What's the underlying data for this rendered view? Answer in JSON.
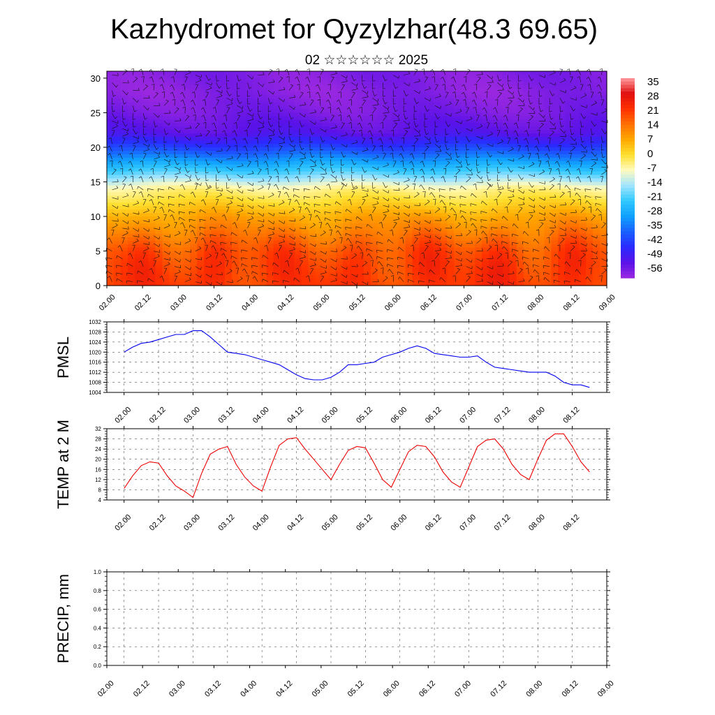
{
  "header": {
    "title": "Kazhydromet for Qyzylzhar(48.3 69.65)",
    "subtitle": "02 ☆☆☆☆☆☆ 2025"
  },
  "time_ticks": [
    "02.00",
    "02.12",
    "03.00",
    "03.12",
    "04.00",
    "04.12",
    "05.00",
    "05.12",
    "06.00",
    "06.12",
    "07.00",
    "07.12",
    "08.00",
    "08.12",
    "09.00"
  ],
  "chart_data": [
    {
      "type": "heatmap",
      "title": "",
      "y_range": [
        0,
        30
      ],
      "y_ticks": [
        0,
        5,
        10,
        15,
        20,
        25,
        30
      ],
      "colorbar": {
        "labels": [
          "35",
          "28",
          "21",
          "14",
          "7",
          "0",
          "-7",
          "-14",
          "-21",
          "-28",
          "-35",
          "-42",
          "-49",
          "-56"
        ],
        "range": [
          -60,
          38
        ],
        "colors": [
          "#9a28e0",
          "#5a12e8",
          "#2a2aff",
          "#1a60ff",
          "#10a0ff",
          "#30c8ff",
          "#a0e4ff",
          "#fffbc0",
          "#ffe030",
          "#ffa800",
          "#ff7000",
          "#ff3000",
          "#e01010",
          "#ff9ba0"
        ]
      },
      "temperature_bands": [
        {
          "height": 0,
          "value": 20
        },
        {
          "height": 5,
          "value": 16
        },
        {
          "height": 10,
          "value": 7
        },
        {
          "height": 14,
          "value": -5
        },
        {
          "height": 16,
          "value": -18
        },
        {
          "height": 18,
          "value": -30
        },
        {
          "height": 20,
          "value": -42
        },
        {
          "height": 22,
          "value": -52
        },
        {
          "height": 25,
          "value": -56
        },
        {
          "height": 28,
          "value": -58
        },
        {
          "height": 31,
          "value": -57
        }
      ],
      "warm_cores": [
        {
          "t": 12.5,
          "h": 3,
          "value": 29
        },
        {
          "t": 36,
          "h": 3,
          "value": 33
        },
        {
          "t": 60,
          "h": 3,
          "value": 28
        },
        {
          "t": 84,
          "h": 3,
          "value": 30
        },
        {
          "t": 108,
          "h": 3,
          "value": 31
        },
        {
          "t": 132,
          "h": 3,
          "value": 33
        },
        {
          "t": 156,
          "h": 3,
          "value": 33
        }
      ]
    },
    {
      "type": "line",
      "ylabel": "PMSL",
      "ylim": [
        1004,
        1032
      ],
      "y_ticks": [
        1004,
        1008,
        1012,
        1016,
        1020,
        1024,
        1028,
        1032
      ],
      "line_color": "#0000ee",
      "x": [
        0,
        3,
        6,
        9,
        12,
        15,
        18,
        21,
        24,
        27,
        30,
        33,
        36,
        39,
        42,
        45,
        48,
        51,
        54,
        57,
        60,
        63,
        66,
        69,
        72,
        75,
        78,
        81,
        84,
        87,
        90,
        93,
        96,
        99,
        102,
        105,
        108,
        111,
        114,
        117,
        120,
        123,
        126,
        129,
        132,
        135,
        138,
        141,
        144,
        147,
        150,
        153,
        156,
        159,
        162
      ],
      "series": [
        {
          "values": [
            1020,
            1022,
            1023.5,
            1024,
            1025,
            1026,
            1027,
            1027,
            1028.5,
            1028.5,
            1026,
            1023,
            1020,
            1019.5,
            1019,
            1018,
            1017,
            1016,
            1015,
            1013,
            1011,
            1009.5,
            1009,
            1009,
            1010,
            1012,
            1015,
            1015,
            1015.5,
            1016,
            1018,
            1019,
            1020,
            1021.5,
            1022.5,
            1021.5,
            1019.5,
            1019,
            1018.5,
            1018,
            1018,
            1018.5,
            1016,
            1014,
            1013.5,
            1013,
            1012.5,
            1012,
            1012,
            1012,
            1010.5,
            1008,
            1007,
            1007,
            1006
          ]
        }
      ]
    },
    {
      "type": "line",
      "ylabel": "TEMP at 2 M",
      "ylim": [
        4,
        32
      ],
      "y_ticks": [
        4,
        8,
        12,
        16,
        20,
        24,
        28,
        32
      ],
      "line_color": "#ee0000",
      "x": [
        0,
        3,
        6,
        9,
        12,
        15,
        18,
        21,
        24,
        27,
        30,
        33,
        36,
        39,
        42,
        45,
        48,
        51,
        54,
        57,
        60,
        63,
        66,
        69,
        72,
        75,
        78,
        81,
        84,
        87,
        90,
        93,
        96,
        99,
        102,
        105,
        108,
        111,
        114,
        117,
        120,
        123,
        126,
        129,
        132,
        135,
        138,
        141,
        144,
        147,
        150,
        153,
        156,
        159,
        162
      ],
      "series": [
        {
          "values": [
            8.5,
            13.5,
            17.5,
            19,
            18.5,
            13.5,
            9.5,
            7.5,
            5,
            14.5,
            22,
            24,
            25,
            18,
            13,
            9.5,
            7.5,
            17,
            25.5,
            28,
            28.5,
            24,
            20,
            16,
            12,
            18,
            23.5,
            25,
            24.5,
            18.5,
            12,
            9,
            16,
            23,
            25.5,
            25,
            21,
            15,
            11,
            9,
            17,
            25,
            27.5,
            28,
            24,
            18,
            14,
            12,
            20,
            27.5,
            30,
            30,
            25,
            19,
            15
          ]
        }
      ]
    },
    {
      "type": "line",
      "ylabel": "PRECIP, mm",
      "ylim": [
        0,
        1
      ],
      "y_ticks": [
        "0.0",
        "0.2",
        "0.4",
        "0.6",
        "0.8",
        "1.0"
      ],
      "line_color": "#000000",
      "x": [
        0,
        162
      ],
      "series": [
        {
          "values": [
            0,
            0
          ]
        }
      ]
    }
  ]
}
